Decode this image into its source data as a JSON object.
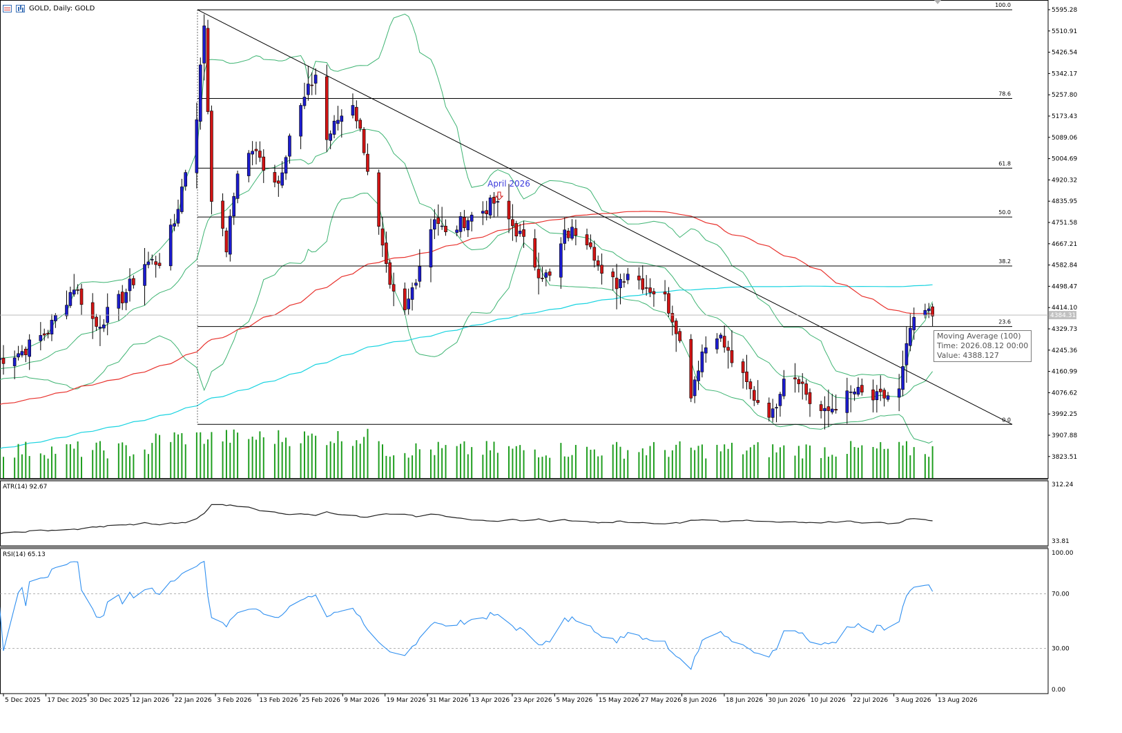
{
  "window": {
    "title": "GOLD, Daily:  GOLD",
    "last_price_label": "4384.31"
  },
  "colors": {
    "bull_candle": "#1c1ccf",
    "bear_candle": "#d21414",
    "bollinger": "#3cb371",
    "ma100": "#e8312c",
    "ma_long": "#19d3e0",
    "volume": "#1f9e1f",
    "atr_line": "#202020",
    "rsi_line": "#2f8ff0",
    "annotation_blue": "#3a3adc"
  },
  "main_panel": {
    "price_axis_labels": [
      "5595.28",
      "5510.91",
      "5426.54",
      "5342.17",
      "5257.80",
      "5173.43",
      "5089.06",
      "5004.69",
      "4920.32",
      "4835.95",
      "4751.58",
      "4667.21",
      "4582.84",
      "4498.47",
      "4414.10",
      "4329.73",
      "4245.36",
      "4160.99",
      "4076.62",
      "3992.25",
      "3907.88",
      "3823.51"
    ],
    "annotation": "April 2026",
    "fibonacci_labels": [
      "100.0",
      "78.6",
      "61.8",
      "50.0",
      "38.2",
      "23.6",
      "0.0"
    ]
  },
  "tooltip": {
    "line1": "Moving Average (100)",
    "line2": "Time: 2026.08.12 00:00",
    "line3": "Value: 4388.127"
  },
  "atr_panel": {
    "label": "ATR(14) 92.67",
    "axis_labels": [
      "312.24",
      "33.81"
    ]
  },
  "rsi_panel": {
    "label": "RSI(14) 65.13",
    "axis_labels": [
      "100.00",
      "70.00",
      "30.00",
      "0.00"
    ]
  },
  "time_axis_labels": [
    "5 Dec 2025",
    "17 Dec 2025",
    "30 Dec 2025",
    "12 Jan 2026",
    "22 Jan 2026",
    "3 Feb 2026",
    "13 Feb 2026",
    "25 Feb 2026",
    "9 Mar 2026",
    "19 Mar 2026",
    "31 Mar 2026",
    "13 Apr 2026",
    "23 Apr 2026",
    "5 May 2026",
    "15 May 2026",
    "27 May 2026",
    "8 Jun 2026",
    "18 Jun 2026",
    "30 Jun 2026",
    "10 Jul 2026",
    "22 Jul 2026",
    "3 Aug 2026",
    "13 Aug 2026"
  ],
  "chart_data": {
    "type": "candlestick",
    "symbol": "GOLD",
    "timeframe": "Daily",
    "y_range": [
      3823.51,
      5595.28
    ],
    "fibonacci": {
      "high": 5595.0,
      "low": 3951.0,
      "levels": [
        100.0,
        78.6,
        61.8,
        50.0,
        38.2,
        23.6,
        0.0
      ]
    },
    "indicators": {
      "moving_average_100_last": 4388.127,
      "atr14_last": 92.67,
      "rsi14_last": 65.13,
      "atr_range": [
        33.81,
        312.24
      ],
      "rsi_levels": [
        30,
        70
      ]
    },
    "close_series_approx": [
      {
        "date": "2025-12-03",
        "close": 4205
      },
      {
        "date": "2025-12-10",
        "close": 4240
      },
      {
        "date": "2025-12-17",
        "close": 4322
      },
      {
        "date": "2025-12-24",
        "close": 4500
      },
      {
        "date": "2025-12-30",
        "close": 4340
      },
      {
        "date": "2026-01-06",
        "close": 4455
      },
      {
        "date": "2026-01-12",
        "close": 4590
      },
      {
        "date": "2026-01-16",
        "close": 4600
      },
      {
        "date": "2026-01-20",
        "close": 4750
      },
      {
        "date": "2026-01-23",
        "close": 4960
      },
      {
        "date": "2026-01-26",
        "close": 5180
      },
      {
        "date": "2026-01-28",
        "close": 5540
      },
      {
        "date": "2026-01-30",
        "close": 4860
      },
      {
        "date": "2026-02-03",
        "close": 4650
      },
      {
        "date": "2026-02-06",
        "close": 4960
      },
      {
        "date": "2026-02-10",
        "close": 5040
      },
      {
        "date": "2026-02-13",
        "close": 4980
      },
      {
        "date": "2026-02-17",
        "close": 4910
      },
      {
        "date": "2026-02-20",
        "close": 5100
      },
      {
        "date": "2026-02-24",
        "close": 5240
      },
      {
        "date": "2026-02-27",
        "close": 5340
      },
      {
        "date": "2026-03-02",
        "close": 5080
      },
      {
        "date": "2026-03-05",
        "close": 5160
      },
      {
        "date": "2026-03-09",
        "close": 5230
      },
      {
        "date": "2026-03-12",
        "close": 5050
      },
      {
        "date": "2026-03-16",
        "close": 4720
      },
      {
        "date": "2026-03-19",
        "close": 4480
      },
      {
        "date": "2026-03-23",
        "close": 4390
      },
      {
        "date": "2026-03-26",
        "close": 4540
      },
      {
        "date": "2026-03-31",
        "close": 4780
      },
      {
        "date": "2026-04-03",
        "close": 4700
      },
      {
        "date": "2026-04-08",
        "close": 4760
      },
      {
        "date": "2026-04-13",
        "close": 4800
      },
      {
        "date": "2026-04-16",
        "close": 4830
      },
      {
        "date": "2026-04-20",
        "close": 4760
      },
      {
        "date": "2026-04-23",
        "close": 4700
      },
      {
        "date": "2026-04-28",
        "close": 4560
      },
      {
        "date": "2026-05-01",
        "close": 4530
      },
      {
        "date": "2026-05-05",
        "close": 4700
      },
      {
        "date": "2026-05-08",
        "close": 4720
      },
      {
        "date": "2026-05-12",
        "close": 4680
      },
      {
        "date": "2026-05-15",
        "close": 4530
      },
      {
        "date": "2026-05-19",
        "close": 4510
      },
      {
        "date": "2026-05-22",
        "close": 4560
      },
      {
        "date": "2026-05-27",
        "close": 4500
      },
      {
        "date": "2026-06-01",
        "close": 4450
      },
      {
        "date": "2026-06-04",
        "close": 4340
      },
      {
        "date": "2026-06-08",
        "close": 4080
      },
      {
        "date": "2026-06-11",
        "close": 4240
      },
      {
        "date": "2026-06-15",
        "close": 4320
      },
      {
        "date": "2026-06-18",
        "close": 4230
      },
      {
        "date": "2026-06-22",
        "close": 4130
      },
      {
        "date": "2026-06-25",
        "close": 4060
      },
      {
        "date": "2026-06-30",
        "close": 3990
      },
      {
        "date": "2026-07-03",
        "close": 4150
      },
      {
        "date": "2026-07-07",
        "close": 4140
      },
      {
        "date": "2026-07-10",
        "close": 4040
      },
      {
        "date": "2026-07-14",
        "close": 3990
      },
      {
        "date": "2026-07-17",
        "close": 4030
      },
      {
        "date": "2026-07-22",
        "close": 4080
      },
      {
        "date": "2026-07-27",
        "close": 4050
      },
      {
        "date": "2026-07-30",
        "close": 4060
      },
      {
        "date": "2026-08-03",
        "close": 4080
      },
      {
        "date": "2026-08-06",
        "close": 4330
      },
      {
        "date": "2026-08-10",
        "close": 4395
      },
      {
        "date": "2026-08-12",
        "close": 4384
      }
    ]
  }
}
